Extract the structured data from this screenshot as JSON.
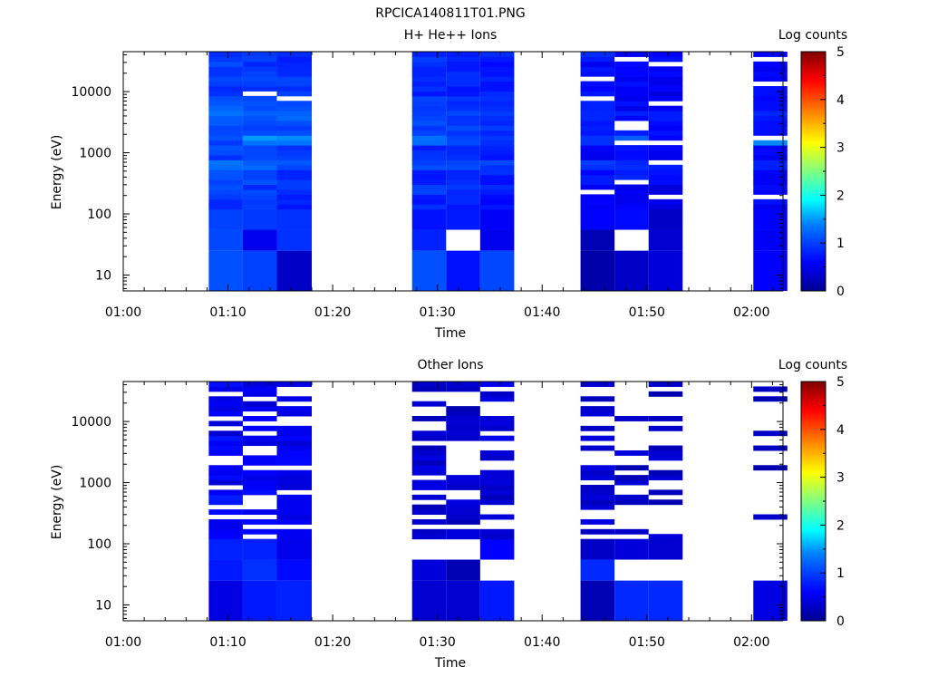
{
  "figure": {
    "title": "RPCICA140811T01.PNG"
  },
  "chart_data": [
    {
      "type": "heatmap",
      "title": "H+ He++ Ions",
      "xlabel": "Time",
      "ylabel": "Energy (eV)",
      "xticks": [
        "01:00",
        "01:10",
        "01:20",
        "01:30",
        "01:40",
        "01:50",
        "02:00"
      ],
      "xlim_minutes": [
        0,
        63
      ],
      "yticks": [
        "10",
        "100",
        "1000",
        "10000"
      ],
      "ylim_ev": [
        5.5,
        45000
      ],
      "yscale": "log",
      "colorbar": {
        "label": "Log counts",
        "ticks": [
          "0",
          "1",
          "2",
          "3",
          "4",
          "5"
        ],
        "range": [
          0,
          5
        ],
        "colormap": "rainbow"
      },
      "time_columns": [
        {
          "start": "01:08:10",
          "end": "01:11:25"
        },
        {
          "start": "01:11:25",
          "end": "01:14:40"
        },
        {
          "start": "01:14:40",
          "end": "01:18:00"
        },
        {
          "start": "01:27:35",
          "end": "01:30:50"
        },
        {
          "start": "01:30:50",
          "end": "01:34:05"
        },
        {
          "start": "01:34:05",
          "end": "01:37:20"
        },
        {
          "start": "01:43:40",
          "end": "01:46:55"
        },
        {
          "start": "01:46:55",
          "end": "01:50:10"
        },
        {
          "start": "01:50:10",
          "end": "01:53:25"
        },
        {
          "start": "02:00:10",
          "end": "02:03:25"
        }
      ],
      "columns": [
        {
          "low_bins": [
            1.1,
            1.05,
            1.0
          ],
          "profile": [
            0.95,
            1.0,
            1.1,
            1.25,
            1.0,
            1.05,
            1.05,
            1.2,
            1.1,
            0.9,
            1.0,
            1.0,
            1.0
          ],
          "gaps": []
        },
        {
          "low_bins": [
            1.0,
            0.5,
            0.95
          ],
          "profile": [
            1.0,
            0.95,
            1.05,
            1.15,
            1.0,
            1.4,
            1.0,
            1.15,
            1.05,
            0.95,
            1.0,
            0.85,
            0.9
          ],
          "gaps": [
            9600
          ]
        },
        {
          "low_bins": [
            0.3,
            0.9,
            0.9
          ],
          "profile": [
            0.8,
            0.9,
            0.9,
            1.05,
            0.95,
            1.35,
            1.0,
            1.2,
            1.0,
            0.9,
            0.95,
            0.8,
            0.85
          ],
          "gaps": [
            7200
          ]
        },
        {
          "low_bins": [
            1.1,
            0.8,
            0.7
          ],
          "profile": [
            0.8,
            0.95,
            0.8,
            1.0,
            0.85,
            1.2,
            1.0,
            1.05,
            0.9,
            0.85,
            0.9,
            0.8,
            0.85
          ],
          "gaps": []
        },
        {
          "low_bins": [
            0.7,
            null,
            0.75
          ],
          "profile": [
            0.75,
            0.9,
            0.85,
            0.95,
            0.85,
            1.05,
            0.95,
            1.0,
            0.85,
            0.8,
            0.85,
            0.75,
            0.8
          ],
          "gaps": []
        },
        {
          "low_bins": [
            1.05,
            0.5,
            0.55
          ],
          "profile": [
            0.7,
            0.85,
            0.8,
            0.95,
            0.8,
            1.0,
            0.9,
            1.0,
            0.85,
            0.8,
            0.8,
            0.75,
            0.8
          ],
          "gaps": []
        },
        {
          "low_bins": [
            0.15,
            0.2,
            0.6
          ],
          "profile": [
            0.6,
            0.55,
            0.7,
            0.85,
            0.6,
            0.8,
            0.75,
            0.9,
            0.75,
            0.65,
            0.7,
            0.6,
            0.75
          ],
          "gaps": [
            215,
            7400,
            17000
          ]
        },
        {
          "low_bins": [
            0.3,
            null,
            0.65
          ],
          "profile": [
            0.55,
            0.5,
            0.75,
            0.8,
            0.6,
            1.2,
            0.7,
            0.75,
            0.6,
            0.55,
            0.6,
            0.55,
            0.65
          ],
          "gaps": [
            330,
            1350,
            2400,
            3000,
            35000
          ]
        },
        {
          "low_bins": [
            0.4,
            0.35,
            0.3
          ],
          "profile": [
            0.5,
            0.45,
            0.65,
            0.75,
            0.55,
            0.7,
            0.65,
            0.8,
            0.65,
            0.5,
            0.55,
            0.5,
            0.6
          ],
          "gaps": [
            190,
            690,
            1450,
            6200,
            27000
          ]
        },
        {
          "low_bins": [
            0.6,
            0.55,
            0.6
          ],
          "profile": [
            0.6,
            0.55,
            0.65,
            0.8,
            0.6,
            1.35,
            0.7,
            0.85,
            0.7,
            0.6,
            0.65,
            0.55,
            0.7
          ],
          "gaps": [
            185,
            1900,
            13000,
            33000
          ]
        }
      ]
    },
    {
      "type": "heatmap",
      "title": "Other Ions",
      "xlabel": "Time",
      "ylabel": "Energy (eV)",
      "xticks": [
        "01:00",
        "01:10",
        "01:20",
        "01:30",
        "01:40",
        "01:50",
        "02:00"
      ],
      "xlim_minutes": [
        0,
        63
      ],
      "yticks": [
        "10",
        "100",
        "1000",
        "10000"
      ],
      "ylim_ev": [
        5.5,
        45000
      ],
      "yscale": "log",
      "colorbar": {
        "label": "Log counts",
        "ticks": [
          "0",
          "1",
          "2",
          "3",
          "4",
          "5"
        ],
        "range": [
          0,
          5
        ],
        "colormap": "rainbow"
      },
      "time_columns": [
        {
          "start": "01:08:10",
          "end": "01:11:25"
        },
        {
          "start": "01:11:25",
          "end": "01:14:40"
        },
        {
          "start": "01:14:40",
          "end": "01:18:00"
        },
        {
          "start": "01:27:35",
          "end": "01:30:50"
        },
        {
          "start": "01:30:50",
          "end": "01:34:05"
        },
        {
          "start": "01:34:05",
          "end": "01:37:20"
        },
        {
          "start": "01:43:40",
          "end": "01:46:55"
        },
        {
          "start": "01:46:55",
          "end": "01:50:10"
        },
        {
          "start": "01:50:10",
          "end": "01:53:25"
        },
        {
          "start": "02:00:10",
          "end": "02:03:25"
        }
      ],
      "columns": [
        {
          "low_bins": [
            0.45,
            0.75,
            0.8
          ],
          "profile": [
            0.6,
            0.55,
            0.7,
            0.45,
            0.6,
            0.5,
            0.65,
            0.45,
            0.55,
            0.5,
            0.6
          ],
          "fill": 0.78
        },
        {
          "low_bins": [
            0.75,
            0.9,
            0.8
          ],
          "profile": [
            0.5,
            0.6,
            0.45,
            0.65,
            0.5,
            0.55,
            0.4,
            0.6,
            0.5,
            0.45,
            0.55
          ],
          "fill": 0.62
        },
        {
          "low_bins": [
            0.8,
            0.65,
            0.5
          ],
          "profile": [
            0.45,
            0.55,
            0.6,
            0.5,
            0.4,
            0.55,
            0.5,
            0.45,
            0.55,
            0.5,
            0.45
          ],
          "fill": 0.66
        },
        {
          "low_bins": [
            0.35,
            0.4,
            null
          ],
          "profile": [
            0.3,
            0.35,
            0.3,
            0.4,
            0.35,
            0.3,
            0.35,
            0.3,
            0.35,
            0.3,
            0.3
          ],
          "fill": 0.58
        },
        {
          "low_bins": [
            0.35,
            0.2,
            null
          ],
          "profile": [
            0.3,
            0.3,
            0.35,
            0.3,
            0.3,
            0.35,
            0.3,
            0.3,
            0.3,
            0.35,
            0.3
          ],
          "fill": 0.55
        },
        {
          "low_bins": [
            0.75,
            null,
            0.6
          ],
          "profile": [
            0.45,
            0.5,
            0.35,
            0.4,
            0.5,
            0.35,
            0.45,
            0.4,
            0.5,
            0.4,
            0.45
          ],
          "fill": 0.5
        },
        {
          "low_bins": [
            0.2,
            0.85,
            0.3
          ],
          "profile": [
            0.3,
            0.35,
            0.3,
            0.3,
            0.35,
            0.3,
            0.3,
            0.35,
            0.3,
            0.3,
            0.3
          ],
          "fill": 0.45
        },
        {
          "low_bins": [
            0.85,
            null,
            0.4
          ],
          "profile": [
            0.3,
            0.3,
            0.35,
            0.3,
            0.3,
            0.3,
            0.35,
            0.3,
            0.3,
            0.3,
            0.35
          ],
          "fill": 0.4
        },
        {
          "low_bins": [
            0.85,
            null,
            0.35
          ],
          "profile": [
            0.3,
            0.3,
            0.3,
            0.35,
            0.3,
            0.3,
            0.3,
            0.3,
            0.35,
            0.3,
            0.3
          ],
          "fill": 0.35
        },
        {
          "low_bins": [
            0.45,
            null,
            null
          ],
          "profile": [
            0.3,
            0.3,
            0.3,
            0.3,
            0.3,
            0.3,
            0.3,
            0.3,
            0.3,
            0.3,
            0.3
          ],
          "fill": 0.16
        }
      ]
    }
  ]
}
